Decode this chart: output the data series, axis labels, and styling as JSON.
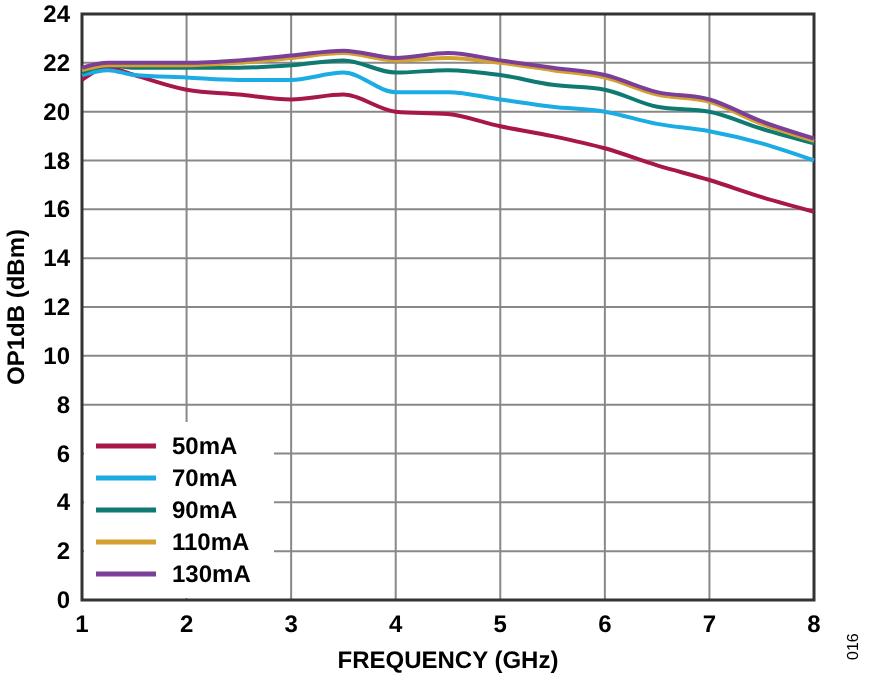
{
  "chart_data": {
    "type": "line",
    "xlabel": "FREQUENCY (GHz)",
    "ylabel": "OP1dB (dBm)",
    "annotations": [
      "016"
    ],
    "x": [
      1,
      1.25,
      1.5,
      2,
      2.5,
      3,
      3.5,
      4,
      4.5,
      5,
      5.5,
      6,
      6.5,
      7,
      7.5,
      8
    ],
    "series": [
      {
        "name": "50mA",
        "color": "#a8174a",
        "values": [
          21.3,
          21.8,
          21.5,
          20.9,
          20.7,
          20.5,
          20.7,
          20.0,
          19.9,
          19.4,
          19.0,
          18.5,
          17.8,
          17.2,
          16.5,
          15.9
        ]
      },
      {
        "name": "70mA",
        "color": "#1aace3",
        "values": [
          21.5,
          21.7,
          21.5,
          21.4,
          21.3,
          21.3,
          21.6,
          20.8,
          20.8,
          20.5,
          20.2,
          20.0,
          19.5,
          19.2,
          18.7,
          18.0
        ]
      },
      {
        "name": "90mA",
        "color": "#0e7a72",
        "values": [
          21.6,
          21.9,
          21.8,
          21.8,
          21.8,
          21.9,
          22.1,
          21.6,
          21.7,
          21.5,
          21.1,
          20.9,
          20.2,
          20.0,
          19.3,
          18.7
        ]
      },
      {
        "name": "110mA",
        "color": "#d4a130",
        "values": [
          21.7,
          21.9,
          21.9,
          21.9,
          22.0,
          22.2,
          22.4,
          22.1,
          22.2,
          22.0,
          21.7,
          21.4,
          20.7,
          20.4,
          19.5,
          18.8
        ]
      },
      {
        "name": "130mA",
        "color": "#7b3f98",
        "values": [
          21.8,
          22.0,
          22.0,
          22.0,
          22.1,
          22.3,
          22.5,
          22.2,
          22.4,
          22.1,
          21.8,
          21.5,
          20.8,
          20.5,
          19.6,
          18.9
        ]
      }
    ],
    "xlim": [
      1,
      8
    ],
    "xticks": [
      1,
      2,
      3,
      4,
      5,
      6,
      7,
      8
    ],
    "ylim": [
      0,
      24
    ],
    "yticks": [
      0,
      2,
      4,
      6,
      8,
      10,
      12,
      14,
      16,
      18,
      20,
      22,
      24
    ],
    "grid": true,
    "legend": "bottom left",
    "line_style": "solid",
    "marker": "none"
  }
}
